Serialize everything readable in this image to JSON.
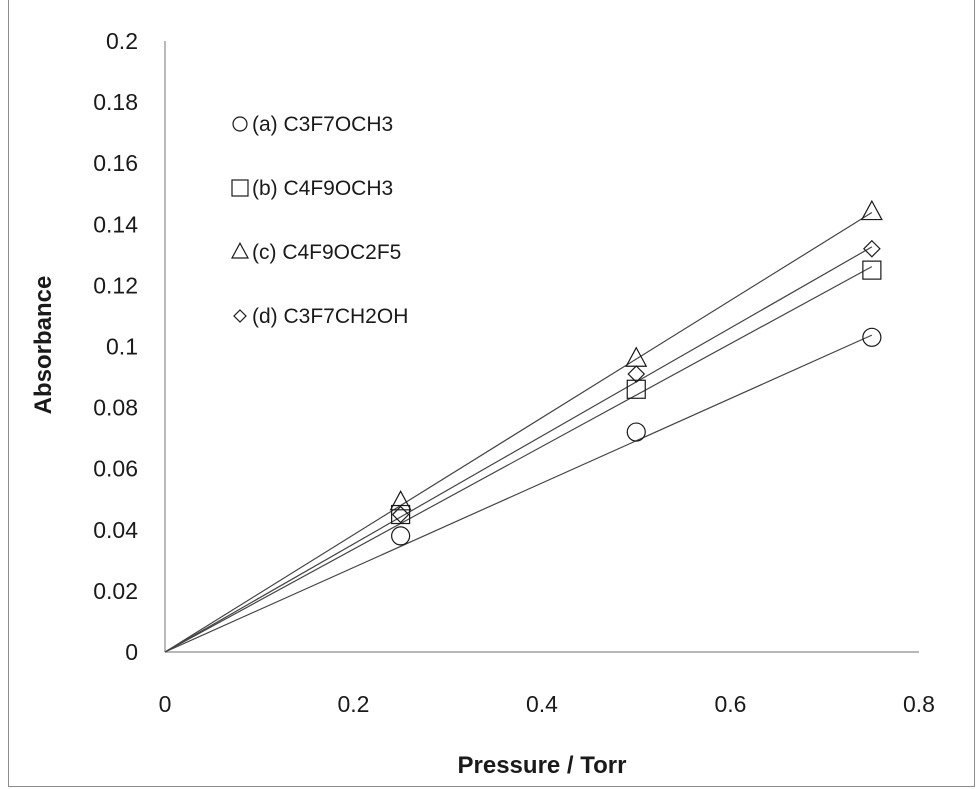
{
  "chart_data": {
    "type": "scatter",
    "title": "",
    "xlabel": "Pressure / Torr",
    "ylabel": "Absorbance",
    "xlim": [
      0,
      0.8
    ],
    "ylim": [
      0,
      0.2
    ],
    "x_ticks": [
      "0",
      "0.2",
      "0.4",
      "0.6",
      "0.8"
    ],
    "y_ticks": [
      "0",
      "0.02",
      "0.04",
      "0.06",
      "0.08",
      "0.1",
      "0.12",
      "0.14",
      "0.16",
      "0.18",
      "0.2"
    ],
    "grid": false,
    "legend_position": "top-left",
    "trendlines": "linear fits through origin",
    "series": [
      {
        "name": "(a) C3F7OCH3",
        "marker": "circle",
        "x": [
          0.25,
          0.5,
          0.75
        ],
        "y": [
          0.038,
          0.072,
          0.103
        ],
        "slope": 0.1383
      },
      {
        "name": "(b) C4F9OCH3",
        "marker": "square",
        "x": [
          0.25,
          0.5,
          0.75
        ],
        "y": [
          0.045,
          0.086,
          0.125
        ],
        "slope": 0.1682
      },
      {
        "name": "(c) C4F9OC2F5",
        "marker": "triangle",
        "x": [
          0.25,
          0.5,
          0.75
        ],
        "y": [
          0.049,
          0.096,
          0.144
        ],
        "slope": 0.1918
      },
      {
        "name": "(d) C3F7CH2OH",
        "marker": "diamond",
        "x": [
          0.25,
          0.5,
          0.75
        ],
        "y": [
          0.045,
          0.091,
          0.132
        ],
        "slope": 0.1768
      }
    ],
    "colors": {
      "line": "#444444",
      "marker_stroke": "#1a1a1a",
      "axis": "#8c8c8c"
    }
  }
}
